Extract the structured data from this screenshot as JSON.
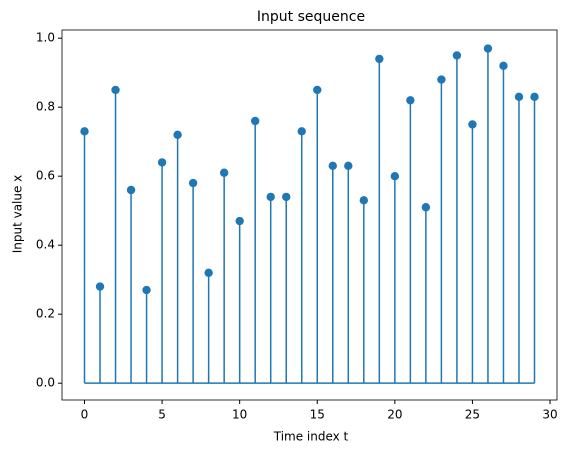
{
  "chart_data": {
    "type": "stem",
    "title": "Input sequence",
    "x_label": "Time index t",
    "y_label": "Input value x",
    "x": [
      0,
      1,
      2,
      3,
      4,
      5,
      6,
      7,
      8,
      9,
      10,
      11,
      12,
      13,
      14,
      15,
      16,
      17,
      18,
      19,
      20,
      21,
      22,
      23,
      24,
      25,
      26,
      27,
      28,
      29
    ],
    "values": [
      0.73,
      0.28,
      0.85,
      0.56,
      0.27,
      0.64,
      0.72,
      0.58,
      0.32,
      0.61,
      0.47,
      0.76,
      0.54,
      0.54,
      0.73,
      0.85,
      0.63,
      0.63,
      0.53,
      0.94,
      0.6,
      0.82,
      0.51,
      0.88,
      0.95,
      0.75,
      0.97,
      0.92,
      0.83,
      0.83
    ],
    "color": "#1f77b4",
    "xlim": [
      -1.45,
      30.45
    ],
    "xticks": [
      0,
      5,
      10,
      15,
      20,
      25,
      30
    ],
    "ylim": [
      -0.04875,
      1.02375
    ],
    "yticks": [
      {
        "value": 0,
        "label": "0.0"
      },
      {
        "value": 0.2,
        "label": "0.2"
      },
      {
        "value": 0.4,
        "label": "0.4"
      },
      {
        "value": 0.6,
        "label": "0.6"
      },
      {
        "value": 0.8,
        "label": "0.8"
      },
      {
        "value": 1,
        "label": "1.0"
      }
    ],
    "grid": false
  }
}
